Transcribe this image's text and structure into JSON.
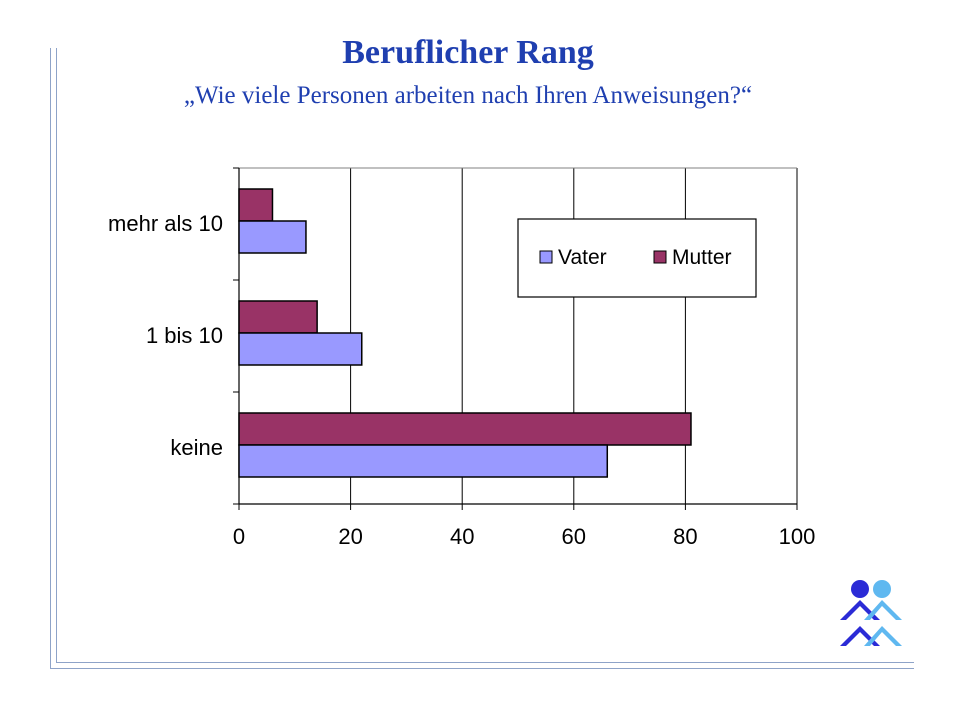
{
  "slide": {
    "title": "Beruflicher Rang",
    "subtitle": "„Wie viele Personen arbeiten nach Ihren Anweisungen?“"
  },
  "logo": {
    "icon": "people-logo-icon"
  },
  "colors": {
    "vater": "#9999ff",
    "mutter": "#993366",
    "title": "#1f3fb0",
    "frame": "#8ea3c8"
  },
  "chart_data": {
    "type": "bar",
    "orientation": "horizontal",
    "categories": [
      "mehr als 10",
      "1 bis 10",
      "keine"
    ],
    "series": [
      {
        "name": "Vater",
        "values": [
          12,
          22,
          66
        ]
      },
      {
        "name": "Mutter",
        "values": [
          6,
          14,
          81
        ]
      }
    ],
    "xlim": [
      0,
      100
    ],
    "xticks": [
      0,
      20,
      40,
      60,
      80,
      100
    ],
    "grid": true,
    "legend_position": "top-right"
  }
}
